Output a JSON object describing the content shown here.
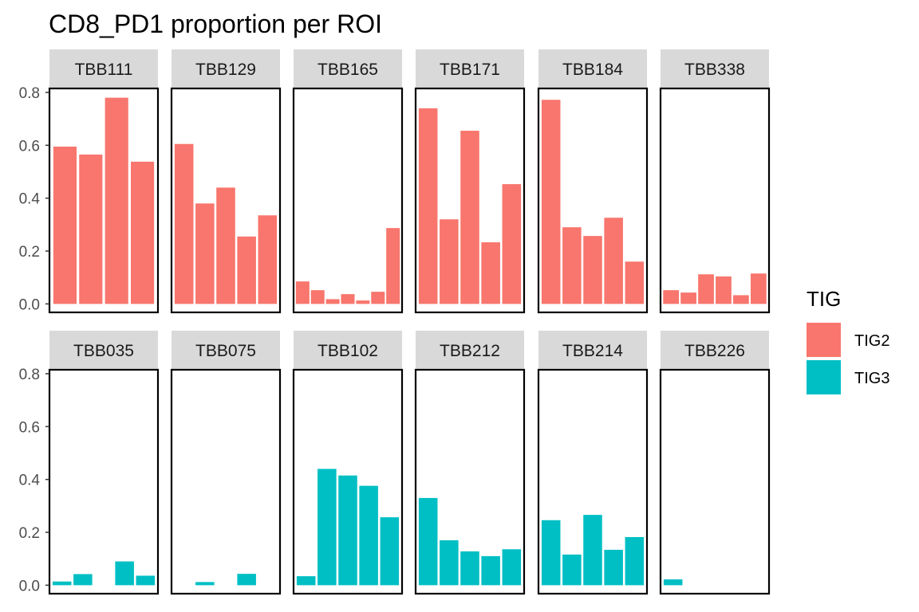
{
  "chart_data": {
    "type": "bar",
    "title": "CD8_PD1 proportion per ROI",
    "xlabel": "",
    "ylabel": "",
    "ylim": [
      -0.032,
      0.815
    ],
    "yticks": [
      0.0,
      0.2,
      0.4,
      0.6,
      0.8
    ],
    "ytick_labels": [
      "0.0",
      "0.2",
      "0.4",
      "0.6",
      "0.8"
    ],
    "grid": false,
    "legend": {
      "title": "TIG",
      "position": "right",
      "entries": [
        {
          "label": "TIG2",
          "color": "#F8766D"
        },
        {
          "label": "TIG3",
          "color": "#00BFC4"
        }
      ]
    },
    "panels": [
      {
        "name": "TBB111",
        "group": "TIG2",
        "values": [
          0.595,
          0.565,
          0.78,
          0.538
        ]
      },
      {
        "name": "TBB129",
        "group": "TIG2",
        "values": [
          0.605,
          0.38,
          0.44,
          0.255,
          0.335
        ]
      },
      {
        "name": "TBB165",
        "group": "TIG2",
        "values": [
          0.085,
          0.052,
          0.018,
          0.037,
          0.013,
          0.046,
          0.287
        ]
      },
      {
        "name": "TBB171",
        "group": "TIG2",
        "values": [
          0.74,
          0.32,
          0.655,
          0.233,
          0.453
        ]
      },
      {
        "name": "TBB184",
        "group": "TIG2",
        "values": [
          0.772,
          0.29,
          0.257,
          0.326,
          0.16
        ]
      },
      {
        "name": "TBB338",
        "group": "TIG2",
        "values": [
          0.052,
          0.043,
          0.112,
          0.104,
          0.033,
          0.115
        ]
      },
      {
        "name": "TBB035",
        "group": "TIG3",
        "values": [
          0.014,
          0.042,
          0.0,
          0.09,
          0.036
        ]
      },
      {
        "name": "TBB075",
        "group": "TIG3",
        "values": [
          0.0,
          0.012,
          0.0,
          0.043,
          0.0
        ]
      },
      {
        "name": "TBB102",
        "group": "TIG3",
        "values": [
          0.034,
          0.44,
          0.415,
          0.376,
          0.257
        ]
      },
      {
        "name": "TBB212",
        "group": "TIG3",
        "values": [
          0.33,
          0.17,
          0.128,
          0.11,
          0.136
        ]
      },
      {
        "name": "TBB214",
        "group": "TIG3",
        "values": [
          0.246,
          0.116,
          0.266,
          0.134,
          0.182
        ]
      },
      {
        "name": "TBB226",
        "group": "TIG3",
        "values": [
          0.022,
          0.0,
          0.0,
          0.0,
          0.0
        ]
      }
    ]
  }
}
